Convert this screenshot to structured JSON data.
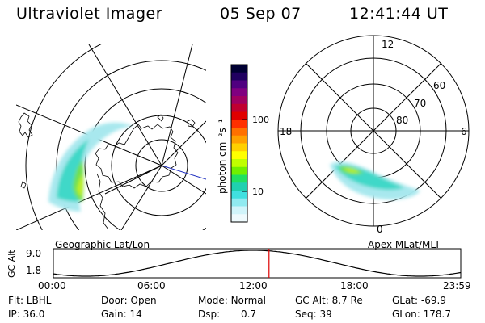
{
  "header": {
    "title": "Ultraviolet Imager",
    "date": "05 Sep 07",
    "time": "12:41:44 UT"
  },
  "colorbar": {
    "unit_label": "photon cm⁻²s⁻¹",
    "ticks": [
      "100",
      "10"
    ],
    "colors": [
      "#000033",
      "#200060",
      "#500080",
      "#800080",
      "#a00060",
      "#c00030",
      "#e00000",
      "#ff3000",
      "#ff7000",
      "#ffa000",
      "#ffd000",
      "#ffff00",
      "#c0ff00",
      "#70f000",
      "#20e060",
      "#20d0b0",
      "#40e0e0",
      "#90eaf0",
      "#d0f4fa",
      "#eefafd"
    ]
  },
  "geo_map": {
    "label": "Geographic Lat/Lon"
  },
  "polar_map": {
    "label": "Apex MLat/MLT",
    "mlt_labels": {
      "top": "12",
      "left": "18",
      "right": "6",
      "bottom": "0"
    },
    "mlat_labels": [
      "60",
      "70",
      "80"
    ]
  },
  "altitude_plot": {
    "ylabel": "GC Alt",
    "y_ticks": [
      "9.0",
      "1.8"
    ],
    "x_ticks": [
      "00:00",
      "06:00",
      "12:00",
      "18:00",
      "23:59"
    ],
    "marker_time": "12:41:44",
    "marker_color": "#dd0000"
  },
  "info": {
    "row1": [
      {
        "key": "Flt:",
        "value": "LBHL"
      },
      {
        "key": "Door:",
        "value": "Open"
      },
      {
        "key": "Mode:",
        "value": "Normal"
      },
      {
        "key": "GC Alt:",
        "value": "8.7 Re"
      },
      {
        "key": "GLat:",
        "value": "-69.9"
      }
    ],
    "row2": [
      {
        "key": "IP:",
        "value": "36.0"
      },
      {
        "key": "Gain:",
        "value": "14"
      },
      {
        "key": "Dsp:",
        "value": "0.7"
      },
      {
        "key": "Seq:",
        "value": "39"
      },
      {
        "key": "GLon:",
        "value": "178.7"
      }
    ]
  }
}
